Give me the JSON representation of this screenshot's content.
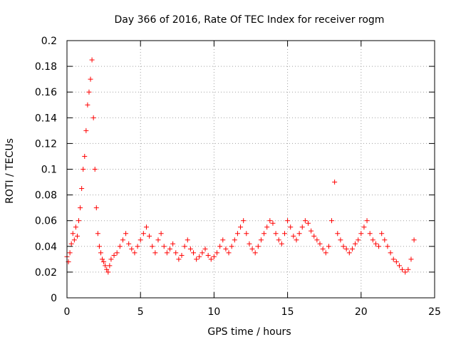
{
  "chart_data": {
    "type": "scatter",
    "title": "Day 366 of 2016, Rate Of TEC Index for receiver rogm",
    "xlabel": "GPS time / hours",
    "ylabel": "ROTI / TECUs",
    "xlim": [
      0,
      25
    ],
    "ylim": [
      0,
      0.2
    ],
    "x_ticks": [
      0,
      5,
      10,
      15,
      20,
      25
    ],
    "x_tick_labels": [
      "0",
      "5",
      "10",
      "15",
      "20",
      "25"
    ],
    "y_ticks": [
      0,
      0.02,
      0.04,
      0.06,
      0.08,
      0.1,
      0.12,
      0.14,
      0.16,
      0.18,
      0.2
    ],
    "y_tick_labels": [
      "0",
      "0.02",
      "0.04",
      "0.06",
      "0.08",
      "0.1",
      "0.12",
      "0.14",
      "0.16",
      "0.18",
      "0.2"
    ],
    "grid": true,
    "marker": "+",
    "color": "#ff0000",
    "series": [
      {
        "name": "ROTI",
        "x": [
          0.0,
          0.1,
          0.2,
          0.3,
          0.4,
          0.5,
          0.6,
          0.7,
          0.8,
          0.9,
          1.0,
          1.1,
          1.2,
          1.3,
          1.4,
          1.5,
          1.6,
          1.7,
          1.8,
          1.9,
          2.0,
          2.1,
          2.2,
          2.3,
          2.4,
          2.5,
          2.6,
          2.7,
          2.8,
          2.9,
          3.0,
          3.2,
          3.4,
          3.6,
          3.8,
          4.0,
          4.2,
          4.4,
          4.6,
          4.8,
          5.0,
          5.2,
          5.4,
          5.6,
          5.8,
          6.0,
          6.2,
          6.4,
          6.6,
          6.8,
          7.0,
          7.2,
          7.4,
          7.6,
          7.8,
          8.0,
          8.2,
          8.4,
          8.6,
          8.8,
          9.0,
          9.2,
          9.4,
          9.6,
          9.8,
          10.0,
          10.2,
          10.4,
          10.6,
          10.8,
          11.0,
          11.2,
          11.4,
          11.6,
          11.8,
          12.0,
          12.2,
          12.4,
          12.6,
          12.8,
          13.0,
          13.2,
          13.4,
          13.6,
          13.8,
          14.0,
          14.2,
          14.4,
          14.6,
          14.8,
          15.0,
          15.2,
          15.4,
          15.6,
          15.8,
          16.0,
          16.2,
          16.4,
          16.6,
          16.8,
          17.0,
          17.2,
          17.4,
          17.6,
          17.8,
          18.0,
          18.2,
          18.4,
          18.6,
          18.8,
          19.0,
          19.2,
          19.4,
          19.6,
          19.8,
          20.0,
          20.2,
          20.4,
          20.6,
          20.8,
          21.0,
          21.2,
          21.4,
          21.6,
          21.8,
          22.0,
          22.2,
          22.4,
          22.6,
          22.8,
          23.0,
          23.2,
          23.4,
          23.6
        ],
        "y": [
          0.032,
          0.028,
          0.035,
          0.042,
          0.05,
          0.045,
          0.055,
          0.048,
          0.06,
          0.07,
          0.085,
          0.1,
          0.11,
          0.13,
          0.15,
          0.16,
          0.17,
          0.185,
          0.14,
          0.1,
          0.07,
          0.05,
          0.04,
          0.035,
          0.03,
          0.028,
          0.025,
          0.022,
          0.02,
          0.025,
          0.03,
          0.033,
          0.035,
          0.04,
          0.045,
          0.05,
          0.042,
          0.038,
          0.035,
          0.04,
          0.045,
          0.05,
          0.055,
          0.048,
          0.04,
          0.035,
          0.045,
          0.05,
          0.04,
          0.035,
          0.038,
          0.042,
          0.035,
          0.03,
          0.033,
          0.04,
          0.045,
          0.038,
          0.035,
          0.03,
          0.032,
          0.035,
          0.038,
          0.033,
          0.03,
          0.032,
          0.035,
          0.04,
          0.045,
          0.038,
          0.035,
          0.04,
          0.045,
          0.05,
          0.055,
          0.06,
          0.05,
          0.042,
          0.038,
          0.035,
          0.04,
          0.045,
          0.05,
          0.055,
          0.06,
          0.058,
          0.05,
          0.045,
          0.042,
          0.05,
          0.06,
          0.055,
          0.048,
          0.045,
          0.05,
          0.055,
          0.06,
          0.058,
          0.052,
          0.048,
          0.045,
          0.042,
          0.038,
          0.035,
          0.04,
          0.06,
          0.09,
          0.05,
          0.045,
          0.04,
          0.038,
          0.035,
          0.038,
          0.042,
          0.045,
          0.05,
          0.055,
          0.06,
          0.05,
          0.045,
          0.042,
          0.04,
          0.05,
          0.045,
          0.04,
          0.035,
          0.03,
          0.028,
          0.025,
          0.022,
          0.02,
          0.022,
          0.03,
          0.045
        ]
      }
    ]
  }
}
